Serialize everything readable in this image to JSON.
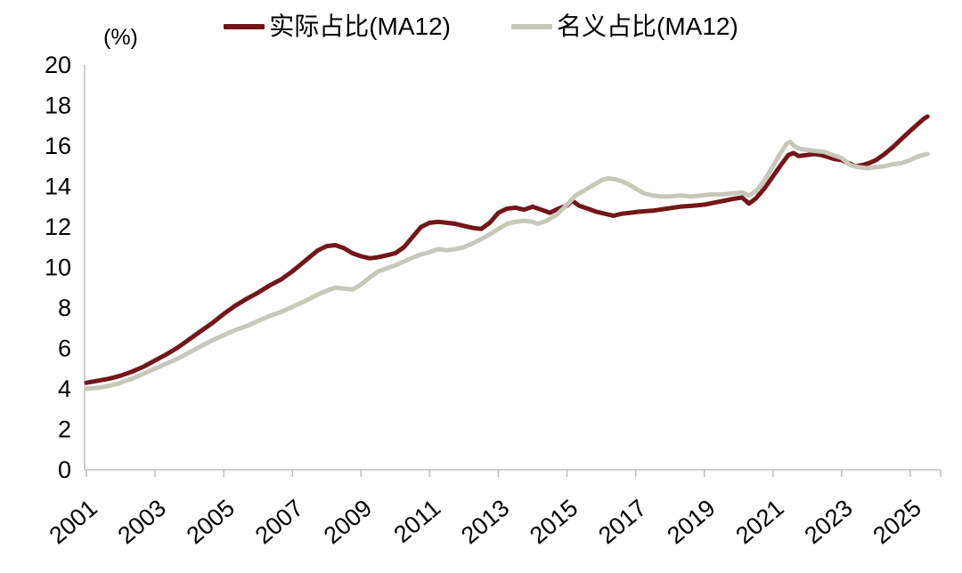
{
  "unit_label": "(%)",
  "chart_data": {
    "type": "line",
    "title": "",
    "xlabel": "",
    "ylabel": "(%)",
    "grid": false,
    "legend_position": "top-center",
    "axis_color": "#BFBFBF",
    "text_color": "#000000",
    "ylim": [
      0,
      20
    ],
    "y_ticks": [
      0,
      2,
      4,
      6,
      8,
      10,
      12,
      14,
      16,
      18,
      20
    ],
    "xlim": [
      2001,
      2025.6
    ],
    "x_ticks": [
      2001,
      2003,
      2005,
      2007,
      2009,
      2011,
      2013,
      2015,
      2017,
      2019,
      2021,
      2023,
      2025
    ],
    "series": [
      {
        "id": "actual-share",
        "name": "实际占比(MA12)",
        "color": "#73161A",
        "points": [
          [
            2001.0,
            4.3
          ],
          [
            2001.33,
            4.4
          ],
          [
            2001.67,
            4.5
          ],
          [
            2002.0,
            4.65
          ],
          [
            2002.33,
            4.85
          ],
          [
            2002.67,
            5.1
          ],
          [
            2003.0,
            5.4
          ],
          [
            2003.33,
            5.7
          ],
          [
            2003.67,
            6.05
          ],
          [
            2004.0,
            6.45
          ],
          [
            2004.33,
            6.85
          ],
          [
            2004.67,
            7.25
          ],
          [
            2005.0,
            7.7
          ],
          [
            2005.33,
            8.1
          ],
          [
            2005.67,
            8.45
          ],
          [
            2006.0,
            8.75
          ],
          [
            2006.33,
            9.1
          ],
          [
            2006.67,
            9.4
          ],
          [
            2007.0,
            9.8
          ],
          [
            2007.25,
            10.15
          ],
          [
            2007.5,
            10.5
          ],
          [
            2007.75,
            10.85
          ],
          [
            2008.0,
            11.05
          ],
          [
            2008.25,
            11.1
          ],
          [
            2008.5,
            10.95
          ],
          [
            2008.75,
            10.7
          ],
          [
            2009.0,
            10.55
          ],
          [
            2009.25,
            10.45
          ],
          [
            2009.5,
            10.5
          ],
          [
            2009.75,
            10.6
          ],
          [
            2010.0,
            10.7
          ],
          [
            2010.25,
            11.0
          ],
          [
            2010.5,
            11.5
          ],
          [
            2010.75,
            12.0
          ],
          [
            2011.0,
            12.2
          ],
          [
            2011.25,
            12.25
          ],
          [
            2011.5,
            12.2
          ],
          [
            2011.75,
            12.15
          ],
          [
            2012.0,
            12.05
          ],
          [
            2012.25,
            11.95
          ],
          [
            2012.5,
            11.9
          ],
          [
            2012.75,
            12.2
          ],
          [
            2013.0,
            12.7
          ],
          [
            2013.25,
            12.9
          ],
          [
            2013.5,
            12.95
          ],
          [
            2013.75,
            12.85
          ],
          [
            2014.0,
            13.0
          ],
          [
            2014.25,
            12.85
          ],
          [
            2014.5,
            12.7
          ],
          [
            2014.75,
            12.9
          ],
          [
            2015.0,
            13.05
          ],
          [
            2015.15,
            13.3
          ],
          [
            2015.35,
            13.05
          ],
          [
            2015.6,
            12.9
          ],
          [
            2015.85,
            12.75
          ],
          [
            2016.1,
            12.65
          ],
          [
            2016.35,
            12.55
          ],
          [
            2016.6,
            12.65
          ],
          [
            2016.85,
            12.7
          ],
          [
            2017.1,
            12.75
          ],
          [
            2017.5,
            12.8
          ],
          [
            2017.9,
            12.9
          ],
          [
            2018.3,
            13.0
          ],
          [
            2018.7,
            13.05
          ],
          [
            2019.0,
            13.1
          ],
          [
            2019.3,
            13.2
          ],
          [
            2019.6,
            13.3
          ],
          [
            2019.9,
            13.4
          ],
          [
            2020.1,
            13.45
          ],
          [
            2020.3,
            13.15
          ],
          [
            2020.5,
            13.4
          ],
          [
            2020.75,
            13.9
          ],
          [
            2021.0,
            14.5
          ],
          [
            2021.25,
            15.1
          ],
          [
            2021.45,
            15.55
          ],
          [
            2021.6,
            15.65
          ],
          [
            2021.75,
            15.5
          ],
          [
            2022.0,
            15.55
          ],
          [
            2022.2,
            15.6
          ],
          [
            2022.4,
            15.55
          ],
          [
            2022.6,
            15.45
          ],
          [
            2022.8,
            15.35
          ],
          [
            2023.0,
            15.3
          ],
          [
            2023.2,
            15.15
          ],
          [
            2023.4,
            15.0
          ],
          [
            2023.6,
            15.05
          ],
          [
            2023.8,
            15.15
          ],
          [
            2024.0,
            15.3
          ],
          [
            2024.25,
            15.6
          ],
          [
            2024.5,
            15.95
          ],
          [
            2024.75,
            16.35
          ],
          [
            2025.0,
            16.75
          ],
          [
            2025.2,
            17.05
          ],
          [
            2025.4,
            17.35
          ],
          [
            2025.5,
            17.45
          ]
        ]
      },
      {
        "id": "nominal-share",
        "name": "名义占比(MA12)",
        "color": "#C7C7BA",
        "points": [
          [
            2001.0,
            4.0
          ],
          [
            2001.33,
            4.05
          ],
          [
            2001.67,
            4.15
          ],
          [
            2002.0,
            4.3
          ],
          [
            2002.33,
            4.5
          ],
          [
            2002.67,
            4.75
          ],
          [
            2003.0,
            5.0
          ],
          [
            2003.33,
            5.25
          ],
          [
            2003.67,
            5.5
          ],
          [
            2004.0,
            5.8
          ],
          [
            2004.33,
            6.1
          ],
          [
            2004.67,
            6.4
          ],
          [
            2005.0,
            6.65
          ],
          [
            2005.33,
            6.9
          ],
          [
            2005.67,
            7.1
          ],
          [
            2006.0,
            7.35
          ],
          [
            2006.33,
            7.6
          ],
          [
            2006.67,
            7.8
          ],
          [
            2007.0,
            8.05
          ],
          [
            2007.33,
            8.3
          ],
          [
            2007.67,
            8.6
          ],
          [
            2008.0,
            8.85
          ],
          [
            2008.25,
            9.0
          ],
          [
            2008.5,
            8.95
          ],
          [
            2008.75,
            8.9
          ],
          [
            2009.0,
            9.15
          ],
          [
            2009.25,
            9.5
          ],
          [
            2009.5,
            9.8
          ],
          [
            2009.75,
            9.95
          ],
          [
            2010.0,
            10.1
          ],
          [
            2010.33,
            10.35
          ],
          [
            2010.67,
            10.6
          ],
          [
            2011.0,
            10.75
          ],
          [
            2011.25,
            10.9
          ],
          [
            2011.5,
            10.85
          ],
          [
            2011.75,
            10.9
          ],
          [
            2012.0,
            11.0
          ],
          [
            2012.33,
            11.25
          ],
          [
            2012.67,
            11.55
          ],
          [
            2013.0,
            11.9
          ],
          [
            2013.25,
            12.15
          ],
          [
            2013.5,
            12.25
          ],
          [
            2013.75,
            12.3
          ],
          [
            2014.0,
            12.25
          ],
          [
            2014.15,
            12.15
          ],
          [
            2014.4,
            12.3
          ],
          [
            2014.7,
            12.6
          ],
          [
            2015.0,
            13.1
          ],
          [
            2015.25,
            13.55
          ],
          [
            2015.5,
            13.8
          ],
          [
            2015.75,
            14.05
          ],
          [
            2016.0,
            14.3
          ],
          [
            2016.2,
            14.4
          ],
          [
            2016.4,
            14.35
          ],
          [
            2016.6,
            14.25
          ],
          [
            2016.8,
            14.1
          ],
          [
            2017.0,
            13.9
          ],
          [
            2017.25,
            13.65
          ],
          [
            2017.5,
            13.55
          ],
          [
            2017.75,
            13.5
          ],
          [
            2018.0,
            13.5
          ],
          [
            2018.3,
            13.55
          ],
          [
            2018.6,
            13.5
          ],
          [
            2018.9,
            13.55
          ],
          [
            2019.2,
            13.6
          ],
          [
            2019.5,
            13.6
          ],
          [
            2019.8,
            13.65
          ],
          [
            2020.1,
            13.7
          ],
          [
            2020.3,
            13.55
          ],
          [
            2020.5,
            13.75
          ],
          [
            2020.75,
            14.3
          ],
          [
            2021.0,
            15.0
          ],
          [
            2021.2,
            15.6
          ],
          [
            2021.4,
            16.1
          ],
          [
            2021.5,
            16.2
          ],
          [
            2021.65,
            15.95
          ],
          [
            2021.8,
            15.85
          ],
          [
            2022.0,
            15.8
          ],
          [
            2022.25,
            15.75
          ],
          [
            2022.5,
            15.7
          ],
          [
            2022.75,
            15.55
          ],
          [
            2023.0,
            15.4
          ],
          [
            2023.25,
            15.05
          ],
          [
            2023.5,
            14.95
          ],
          [
            2023.75,
            14.9
          ],
          [
            2024.0,
            14.95
          ],
          [
            2024.25,
            15.0
          ],
          [
            2024.5,
            15.1
          ],
          [
            2024.75,
            15.15
          ],
          [
            2025.0,
            15.3
          ],
          [
            2025.25,
            15.5
          ],
          [
            2025.5,
            15.6
          ]
        ]
      }
    ]
  }
}
